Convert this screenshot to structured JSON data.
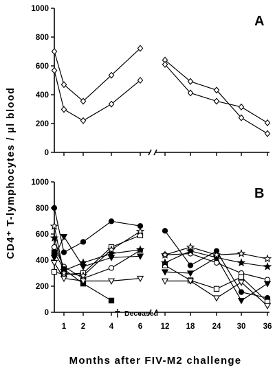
{
  "chart_data": [
    {
      "panel": "A",
      "type": "line",
      "ylim": [
        0,
        1000
      ],
      "yticks": [
        0,
        200,
        400,
        600,
        800,
        1000
      ],
      "series": [
        {
          "marker": "diamond-open",
          "segments": [
            [
              [
                0,
                700
              ],
              [
                1,
                470
              ],
              [
                2,
                355
              ],
              [
                4,
                535
              ],
              [
                6,
                722
              ]
            ],
            [
              [
                12,
                640
              ],
              [
                18,
                492
              ],
              [
                24,
                432
              ],
              [
                30,
                240
              ],
              [
                36,
                130
              ]
            ]
          ]
        },
        {
          "marker": "diamond-open",
          "segments": [
            [
              [
                0,
                568
              ],
              [
                1,
                298
              ],
              [
                2,
                220
              ],
              [
                4,
                335
              ],
              [
                6,
                500
              ]
            ],
            [
              [
                12,
                610
              ],
              [
                18,
                412
              ],
              [
                24,
                355
              ],
              [
                30,
                315
              ],
              [
                36,
                205
              ]
            ]
          ]
        }
      ]
    },
    {
      "panel": "B",
      "type": "line",
      "ylim": [
        0,
        1000
      ],
      "yticks": [
        0,
        200,
        400,
        600,
        800,
        1000
      ],
      "annotation": {
        "dagger": "†",
        "text": "Deceased"
      },
      "series": [
        {
          "marker": "circle-filled",
          "segments": [
            [
              [
                0,
                800
              ],
              [
                1,
                460
              ],
              [
                2,
                540
              ],
              [
                4,
                698
              ],
              [
                6,
                662
              ]
            ],
            [
              [
                12,
                625
              ],
              [
                18,
                360
              ],
              [
                24,
                470
              ],
              [
                30,
                155
              ],
              [
                36,
                110
              ]
            ]
          ]
        },
        {
          "marker": "circle-open",
          "segments": [
            [
              [
                0,
                500
              ],
              [
                1,
                350
              ],
              [
                2,
                260
              ],
              [
                4,
                340
              ],
              [
                6,
                475
              ]
            ],
            [
              [
                12,
                440
              ],
              [
                18,
                450
              ],
              [
                24,
                380
              ],
              [
                30,
                300
              ],
              [
                36,
                250
              ]
            ]
          ]
        },
        {
          "marker": "square-open",
          "segments": [
            [
              [
                0,
                310
              ],
              [
                1,
                290
              ],
              [
                2,
                300
              ],
              [
                4,
                500
              ],
              [
                6,
                590
              ]
            ],
            [
              [
                12,
                360
              ],
              [
                18,
                245
              ],
              [
                24,
                180
              ],
              [
                30,
                270
              ],
              [
                36,
                80
              ]
            ]
          ]
        },
        {
          "marker": "square-filled",
          "segments": [
            [
              [
                0,
                460
              ],
              [
                1,
                330
              ],
              [
                2,
                220
              ],
              [
                4,
                90
              ]
            ]
          ]
        },
        {
          "marker": "triangle-down-filled",
          "segments": [
            [
              [
                0,
                420
              ],
              [
                1,
                580
              ],
              [
                2,
                350
              ],
              [
                4,
                420
              ],
              [
                6,
                430
              ]
            ],
            [
              [
                12,
                310
              ],
              [
                18,
                300
              ],
              [
                24,
                420
              ],
              [
                30,
                90
              ],
              [
                36,
                220
              ]
            ]
          ]
        },
        {
          "marker": "triangle-down-open",
          "segments": [
            [
              [
                0,
                380
              ],
              [
                1,
                260
              ],
              [
                2,
                240
              ],
              [
                4,
                240
              ],
              [
                6,
                260
              ]
            ],
            [
              [
                12,
                240
              ],
              [
                18,
                240
              ],
              [
                24,
                110
              ],
              [
                30,
                230
              ],
              [
                36,
                50
              ]
            ]
          ]
        },
        {
          "marker": "star-filled",
          "segments": [
            [
              [
                0,
                570
              ],
              [
                1,
                320
              ],
              [
                2,
                380
              ],
              [
                4,
                450
              ],
              [
                6,
                480
              ]
            ],
            [
              [
                12,
                380
              ],
              [
                18,
                470
              ],
              [
                24,
                420
              ],
              [
                30,
                380
              ],
              [
                36,
                350
              ]
            ]
          ]
        },
        {
          "marker": "star-open",
          "segments": [
            [
              [
                0,
                660
              ],
              [
                1,
                300
              ],
              [
                2,
                280
              ],
              [
                4,
                480
              ],
              [
                6,
                620
              ]
            ],
            [
              [
                12,
                440
              ],
              [
                18,
                500
              ],
              [
                24,
                440
              ],
              [
                30,
                450
              ],
              [
                36,
                410
              ]
            ]
          ]
        }
      ]
    }
  ],
  "x_categories": [
    {
      "value": 1,
      "label": "1"
    },
    {
      "value": 2,
      "label": "2"
    },
    {
      "value": 4,
      "label": "4"
    },
    {
      "value": 6,
      "label": "6"
    },
    {
      "value": 12,
      "label": "12"
    },
    {
      "value": 18,
      "label": "18"
    },
    {
      "value": 24,
      "label": "24"
    },
    {
      "value": 30,
      "label": "30"
    },
    {
      "value": 36,
      "label": "36"
    }
  ],
  "labels": {
    "panel_a": "A",
    "panel_b": "B",
    "ylabel": "CD4⁺ T-lymphocytes / µl blood",
    "xlabel": "Months after FIV-M2 challenge",
    "deceased_dagger": "†",
    "deceased_text": "Deceased"
  }
}
